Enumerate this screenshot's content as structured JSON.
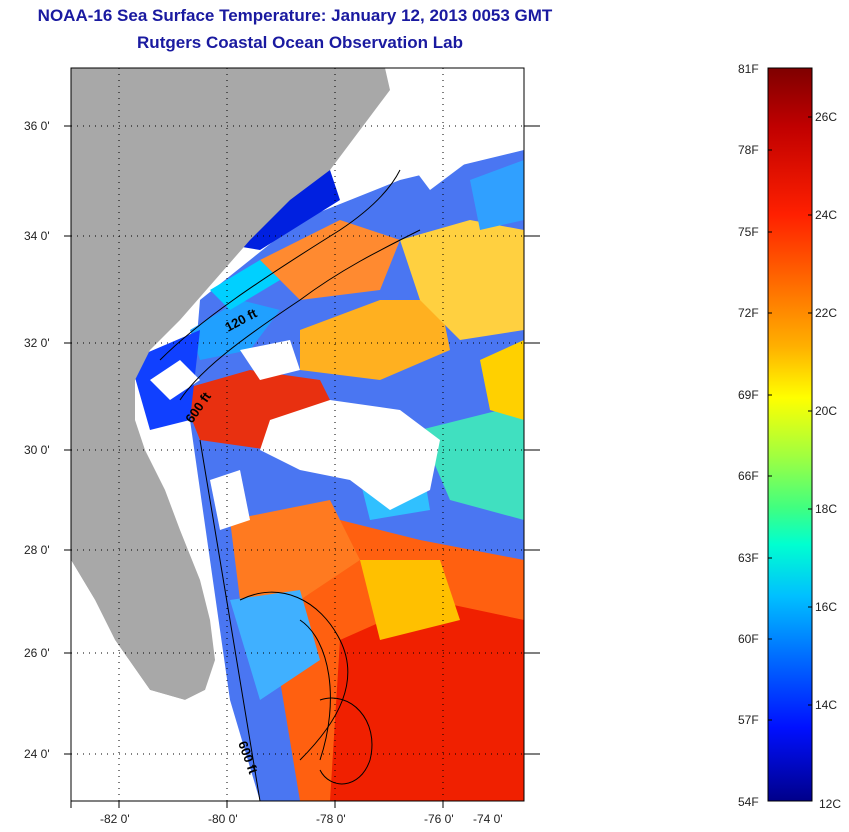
{
  "header": {
    "title": "NOAA-16 Sea Surface Temperature:  January 12, 2013 0053 GMT",
    "subtitle": "Rutgers Coastal Ocean Observation Lab"
  },
  "map": {
    "lat_ticks": [
      "36 0'",
      "34 0'",
      "32 0'",
      "30 0'",
      "28 0'",
      "26 0'",
      "24 0'"
    ],
    "lon_ticks": [
      "-82 0'",
      "-80 0'",
      "-78 0'",
      "-76 0'",
      "-74 0'"
    ],
    "contour_labels": [
      "120 ft",
      "600 ft",
      "600 ft"
    ],
    "colors": {
      "land": "#a8a8a8",
      "cloud": "#ffffff",
      "contour": "#000000"
    }
  },
  "colorbar": {
    "fahrenheit": [
      "81F",
      "78F",
      "75F",
      "72F",
      "69F",
      "66F",
      "63F",
      "60F",
      "57F",
      "54F"
    ],
    "celsius": [
      "26C",
      "24C",
      "22C",
      "20C",
      "18C",
      "16C",
      "14C",
      "12C"
    ],
    "colors": [
      "#7f0000",
      "#e00000",
      "#ff4000",
      "#ff8c00",
      "#ffd000",
      "#ffff00",
      "#b0ff40",
      "#40ffc0",
      "#00e0ff",
      "#0090ff",
      "#0040ff",
      "#0000d0",
      "#00007f"
    ]
  }
}
